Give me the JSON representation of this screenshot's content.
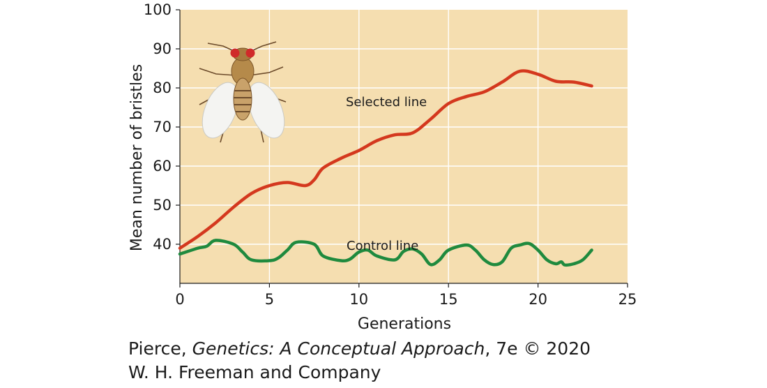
{
  "chart_data": {
    "type": "line",
    "xlabel": "Generations",
    "ylabel": "Mean number of bristles",
    "xlim": [
      0,
      25
    ],
    "ylim": [
      30,
      100
    ],
    "x_ticks": [
      0,
      5,
      10,
      15,
      20,
      25
    ],
    "y_ticks": [
      40,
      50,
      60,
      70,
      80,
      90,
      100
    ],
    "grid": true,
    "series": [
      {
        "name": "Selected line",
        "color": "#d4381e",
        "points": [
          [
            0,
            39
          ],
          [
            1,
            42
          ],
          [
            2,
            45.5
          ],
          [
            3,
            49.5
          ],
          [
            4,
            53
          ],
          [
            5,
            55
          ],
          [
            6,
            55.8
          ],
          [
            7,
            55
          ],
          [
            7.5,
            56.5
          ],
          [
            8,
            59.5
          ],
          [
            9,
            62
          ],
          [
            10,
            64
          ],
          [
            11,
            66.5
          ],
          [
            12,
            68
          ],
          [
            13,
            68.5
          ],
          [
            14,
            72
          ],
          [
            15,
            76
          ],
          [
            16,
            77.8
          ],
          [
            17,
            79
          ],
          [
            18,
            81.5
          ],
          [
            19,
            84.3
          ],
          [
            20,
            83.5
          ],
          [
            21,
            81.7
          ],
          [
            22,
            81.5
          ],
          [
            23,
            80.5
          ]
        ]
      },
      {
        "name": "Control line",
        "color": "#1f8a3e",
        "points": [
          [
            0,
            37.5
          ],
          [
            1,
            39
          ],
          [
            1.5,
            39.5
          ],
          [
            2,
            41
          ],
          [
            3,
            40
          ],
          [
            3.5,
            38
          ],
          [
            4,
            36
          ],
          [
            5,
            35.8
          ],
          [
            5.5,
            36.5
          ],
          [
            6,
            38.5
          ],
          [
            6.5,
            40.5
          ],
          [
            7.5,
            40
          ],
          [
            8,
            37
          ],
          [
            9,
            35.8
          ],
          [
            9.5,
            36.2
          ],
          [
            10,
            38
          ],
          [
            10.5,
            38.5
          ],
          [
            11,
            37
          ],
          [
            12,
            36
          ],
          [
            12.5,
            38.2
          ],
          [
            13,
            38.8
          ],
          [
            13.5,
            37.5
          ],
          [
            14,
            34.8
          ],
          [
            14.5,
            36
          ],
          [
            15,
            38.5
          ],
          [
            16,
            39.8
          ],
          [
            16.5,
            38.5
          ],
          [
            17,
            36
          ],
          [
            17.5,
            34.8
          ],
          [
            18,
            35.5
          ],
          [
            18.5,
            39
          ],
          [
            19,
            39.8
          ],
          [
            19.5,
            40.2
          ],
          [
            20,
            38.5
          ],
          [
            20.5,
            36
          ],
          [
            21,
            35
          ],
          [
            21.3,
            35.5
          ],
          [
            21.5,
            34.7
          ],
          [
            22,
            35
          ],
          [
            22.5,
            36
          ],
          [
            23,
            38.5
          ]
        ]
      }
    ]
  },
  "credit": {
    "line1_author": "Pierce, ",
    "line1_title": "Genetics: A Conceptual Approach",
    "line1_rest": ", 7e © 2020",
    "line2": "W. H. Freeman and Company"
  }
}
